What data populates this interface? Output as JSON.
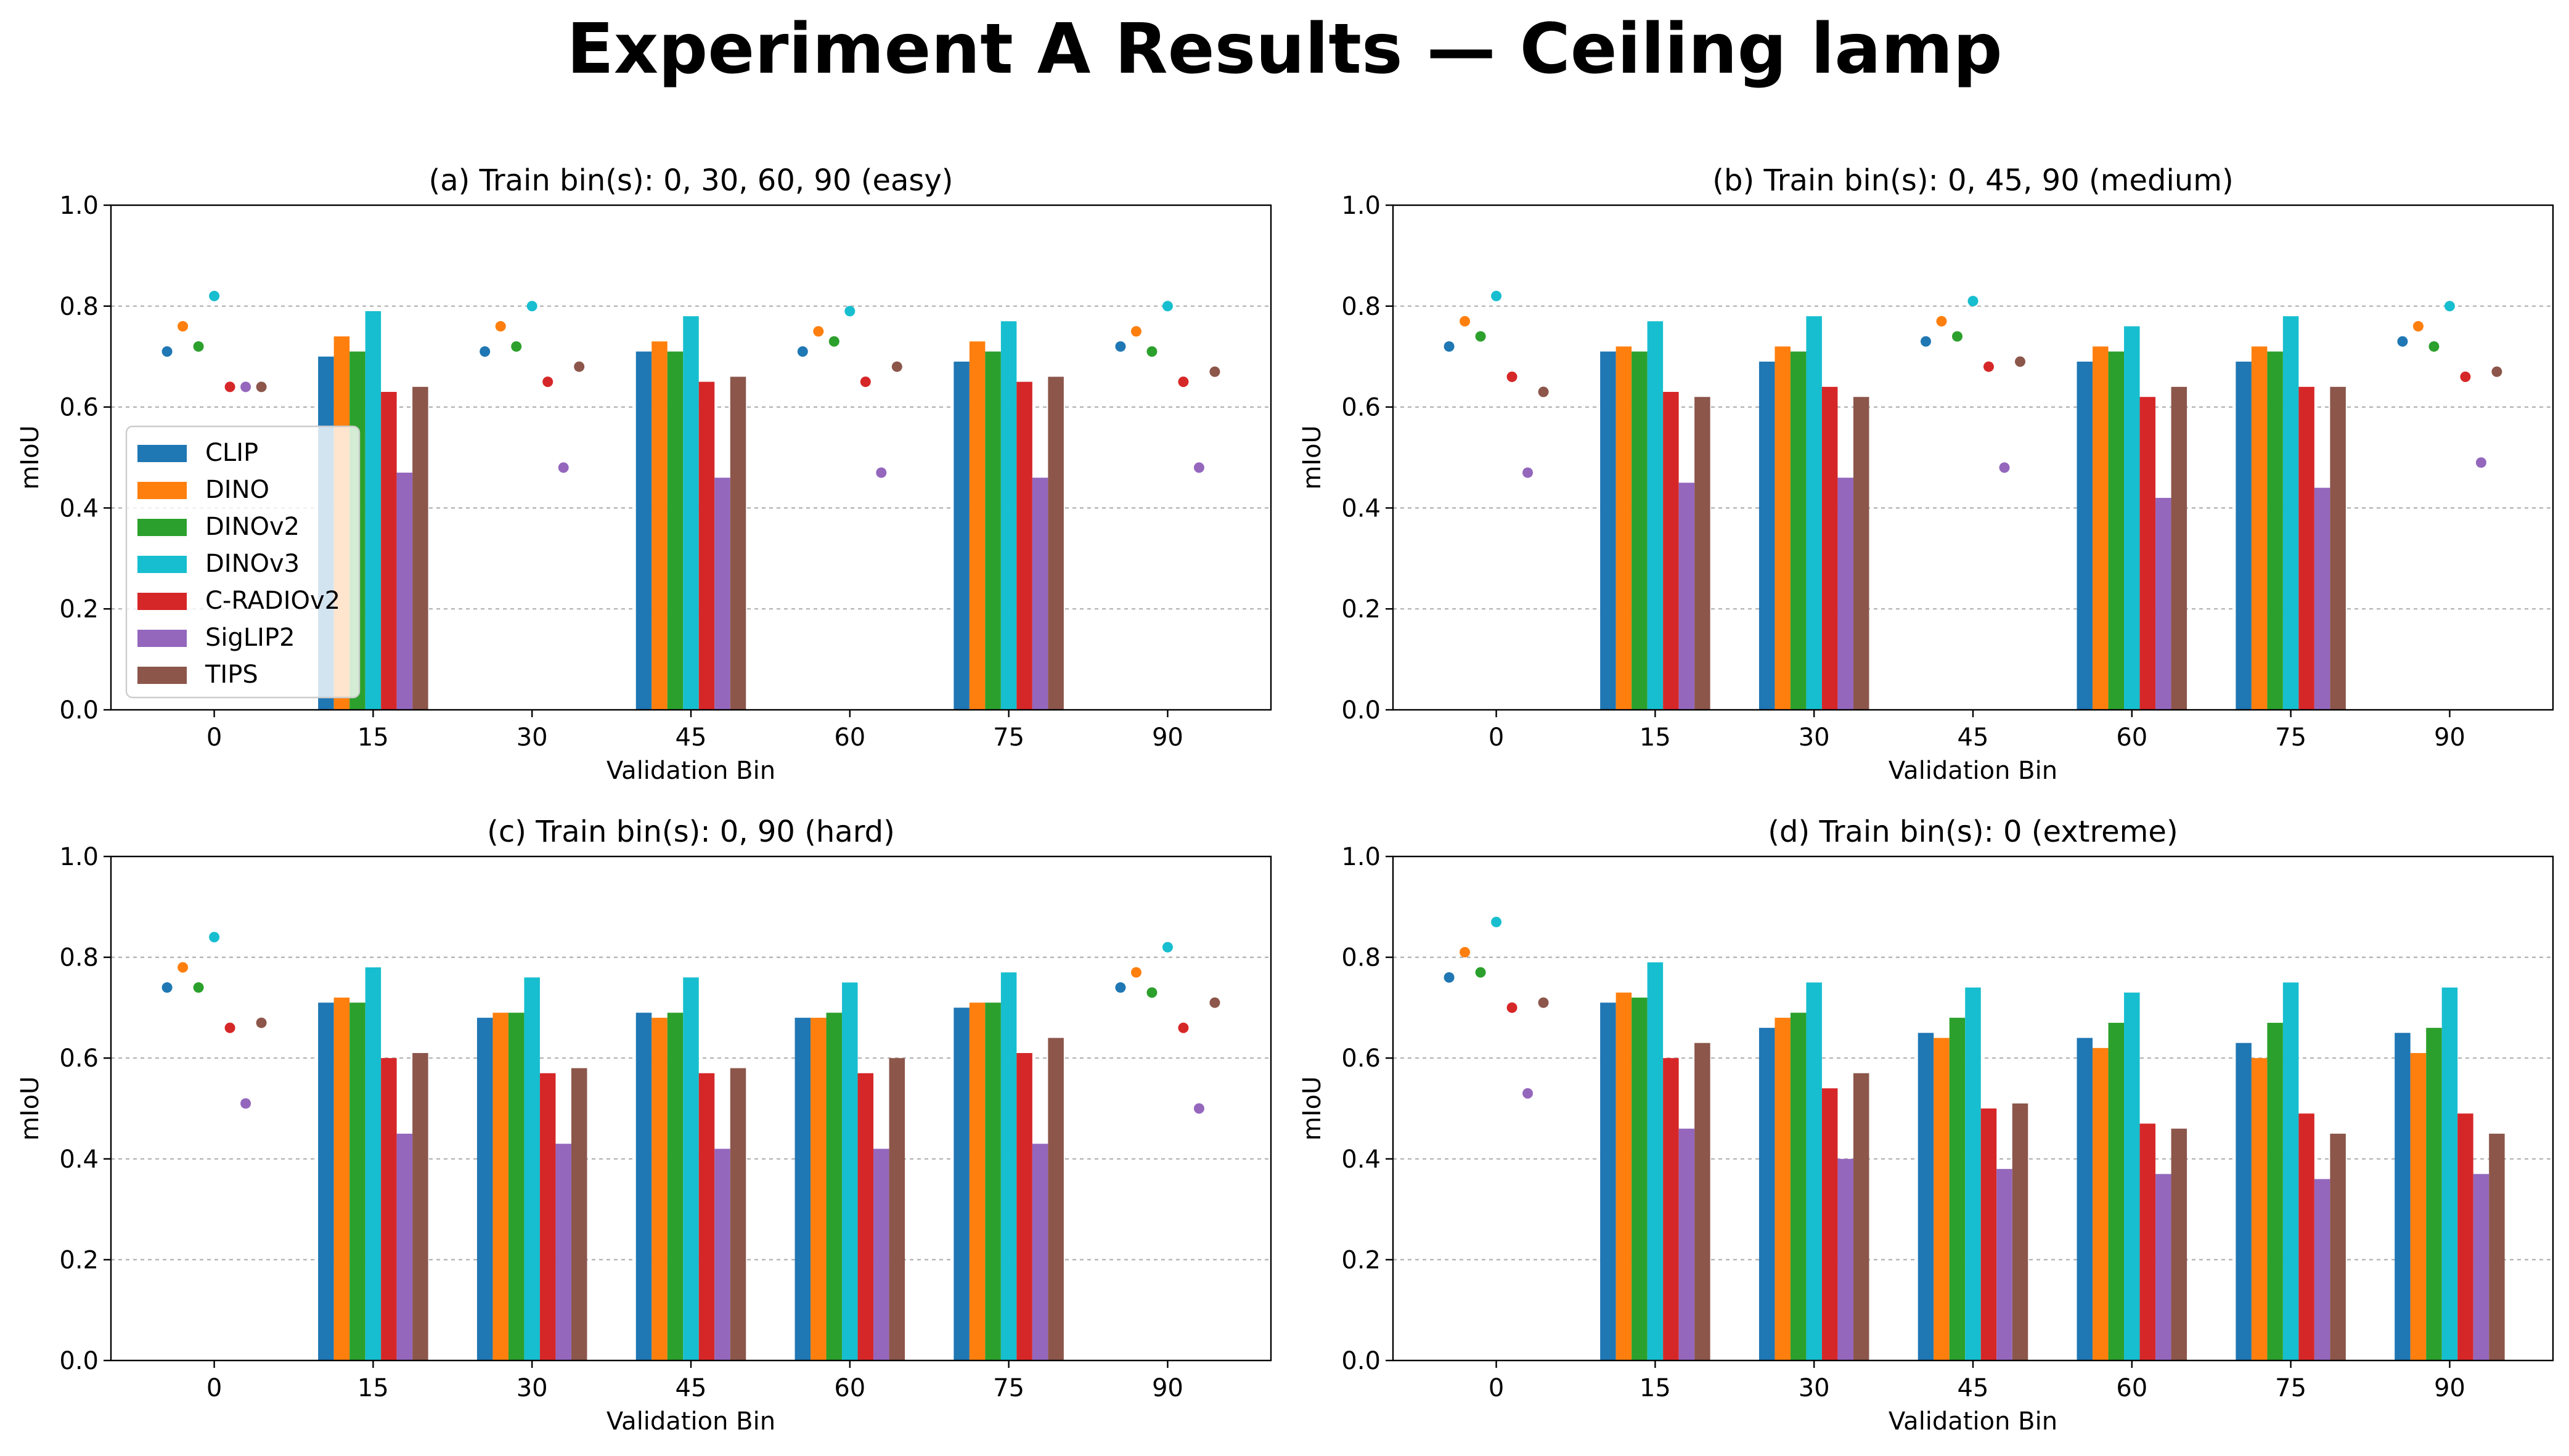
{
  "figure_title": "Experiment A Results — Ceiling lamp",
  "colors": {
    "CLIP": "#1f77b4",
    "DINO": "#ff7f0e",
    "DINOv2": "#2ca02c",
    "DINOv3": "#17becf",
    "C-RADIOv2": "#d62728",
    "SigLIP2": "#9467bd",
    "TIPS": "#8c564b"
  },
  "chart_data": [
    {
      "type": "bar",
      "title": "(a) Train bin(s): 0, 30, 60, 90 (easy)",
      "xlabel": "Validation Bin",
      "ylabel": "mIoU",
      "ylim": [
        0,
        1.0
      ],
      "yticks": [
        "0.0",
        "0.2",
        "0.4",
        "0.6",
        "0.8",
        "1.0"
      ],
      "categories": [
        "0",
        "15",
        "30",
        "45",
        "60",
        "75",
        "90"
      ],
      "train_bins": [
        "0",
        "30",
        "60",
        "90"
      ],
      "legend_position": "lower-left",
      "legend": [
        "CLIP",
        "DINO",
        "DINOv2",
        "DINOv3",
        "C-RADIOv2",
        "SigLIP2",
        "TIPS"
      ],
      "series": [
        {
          "name": "CLIP",
          "values": [
            0.71,
            0.7,
            0.71,
            0.71,
            0.71,
            0.69,
            0.72
          ]
        },
        {
          "name": "DINO",
          "values": [
            0.76,
            0.74,
            0.76,
            0.73,
            0.75,
            0.73,
            0.75
          ]
        },
        {
          "name": "DINOv2",
          "values": [
            0.72,
            0.71,
            0.72,
            0.71,
            0.73,
            0.71,
            0.71
          ]
        },
        {
          "name": "DINOv3",
          "values": [
            0.82,
            0.79,
            0.8,
            0.78,
            0.79,
            0.77,
            0.8
          ]
        },
        {
          "name": "C-RADIOv2",
          "values": [
            0.64,
            0.63,
            0.65,
            0.65,
            0.65,
            0.65,
            0.65
          ]
        },
        {
          "name": "SigLIP2",
          "values": [
            0.64,
            0.47,
            0.48,
            0.46,
            0.47,
            0.46,
            0.48
          ]
        },
        {
          "name": "TIPS",
          "values": [
            0.64,
            0.64,
            0.68,
            0.66,
            0.68,
            0.66,
            0.67
          ]
        }
      ]
    },
    {
      "type": "bar",
      "title": "(b) Train bin(s): 0, 45, 90 (medium)",
      "xlabel": "Validation Bin",
      "ylabel": "mIoU",
      "ylim": [
        0,
        1.0
      ],
      "yticks": [
        "0.0",
        "0.2",
        "0.4",
        "0.6",
        "0.8",
        "1.0"
      ],
      "categories": [
        "0",
        "15",
        "30",
        "45",
        "60",
        "75",
        "90"
      ],
      "train_bins": [
        "0",
        "45",
        "90"
      ],
      "series": [
        {
          "name": "CLIP",
          "values": [
            0.72,
            0.71,
            0.69,
            0.73,
            0.69,
            0.69,
            0.73
          ]
        },
        {
          "name": "DINO",
          "values": [
            0.77,
            0.72,
            0.72,
            0.77,
            0.72,
            0.72,
            0.76
          ]
        },
        {
          "name": "DINOv2",
          "values": [
            0.74,
            0.71,
            0.71,
            0.74,
            0.71,
            0.71,
            0.72
          ]
        },
        {
          "name": "DINOv3",
          "values": [
            0.82,
            0.77,
            0.78,
            0.81,
            0.76,
            0.78,
            0.8
          ]
        },
        {
          "name": "C-RADIOv2",
          "values": [
            0.66,
            0.63,
            0.64,
            0.68,
            0.62,
            0.64,
            0.66
          ]
        },
        {
          "name": "SigLIP2",
          "values": [
            0.47,
            0.45,
            0.46,
            0.48,
            0.42,
            0.44,
            0.49
          ]
        },
        {
          "name": "TIPS",
          "values": [
            0.63,
            0.62,
            0.62,
            0.69,
            0.64,
            0.64,
            0.67
          ]
        }
      ]
    },
    {
      "type": "bar",
      "title": "(c) Train bin(s): 0, 90 (hard)",
      "xlabel": "Validation Bin",
      "ylabel": "mIoU",
      "ylim": [
        0,
        1.0
      ],
      "yticks": [
        "0.0",
        "0.2",
        "0.4",
        "0.6",
        "0.8",
        "1.0"
      ],
      "categories": [
        "0",
        "15",
        "30",
        "45",
        "60",
        "75",
        "90"
      ],
      "train_bins": [
        "0",
        "90"
      ],
      "series": [
        {
          "name": "CLIP",
          "values": [
            0.74,
            0.71,
            0.68,
            0.69,
            0.68,
            0.7,
            0.74
          ]
        },
        {
          "name": "DINO",
          "values": [
            0.78,
            0.72,
            0.69,
            0.68,
            0.68,
            0.71,
            0.77
          ]
        },
        {
          "name": "DINOv2",
          "values": [
            0.74,
            0.71,
            0.69,
            0.69,
            0.69,
            0.71,
            0.73
          ]
        },
        {
          "name": "DINOv3",
          "values": [
            0.84,
            0.78,
            0.76,
            0.76,
            0.75,
            0.77,
            0.82
          ]
        },
        {
          "name": "C-RADIOv2",
          "values": [
            0.66,
            0.6,
            0.57,
            0.57,
            0.57,
            0.61,
            0.66
          ]
        },
        {
          "name": "SigLIP2",
          "values": [
            0.51,
            0.45,
            0.43,
            0.42,
            0.42,
            0.43,
            0.5
          ]
        },
        {
          "name": "TIPS",
          "values": [
            0.67,
            0.61,
            0.58,
            0.58,
            0.6,
            0.64,
            0.71
          ]
        }
      ]
    },
    {
      "type": "bar",
      "title": "(d) Train bin(s): 0 (extreme)",
      "xlabel": "Validation Bin",
      "ylabel": "mIoU",
      "ylim": [
        0,
        1.0
      ],
      "yticks": [
        "0.0",
        "0.2",
        "0.4",
        "0.6",
        "0.8",
        "1.0"
      ],
      "categories": [
        "0",
        "15",
        "30",
        "45",
        "60",
        "75",
        "90"
      ],
      "train_bins": [
        "0"
      ],
      "series": [
        {
          "name": "CLIP",
          "values": [
            0.76,
            0.71,
            0.66,
            0.65,
            0.64,
            0.63,
            0.65
          ]
        },
        {
          "name": "DINO",
          "values": [
            0.81,
            0.73,
            0.68,
            0.64,
            0.62,
            0.6,
            0.61
          ]
        },
        {
          "name": "DINOv2",
          "values": [
            0.77,
            0.72,
            0.69,
            0.68,
            0.67,
            0.67,
            0.66
          ]
        },
        {
          "name": "DINOv3",
          "values": [
            0.87,
            0.79,
            0.75,
            0.74,
            0.73,
            0.75,
            0.74
          ]
        },
        {
          "name": "C-RADIOv2",
          "values": [
            0.7,
            0.6,
            0.54,
            0.5,
            0.47,
            0.49,
            0.49
          ]
        },
        {
          "name": "SigLIP2",
          "values": [
            0.53,
            0.46,
            0.4,
            0.38,
            0.37,
            0.36,
            0.37
          ]
        },
        {
          "name": "TIPS",
          "values": [
            0.71,
            0.63,
            0.57,
            0.51,
            0.46,
            0.45,
            0.45
          ]
        }
      ]
    }
  ]
}
